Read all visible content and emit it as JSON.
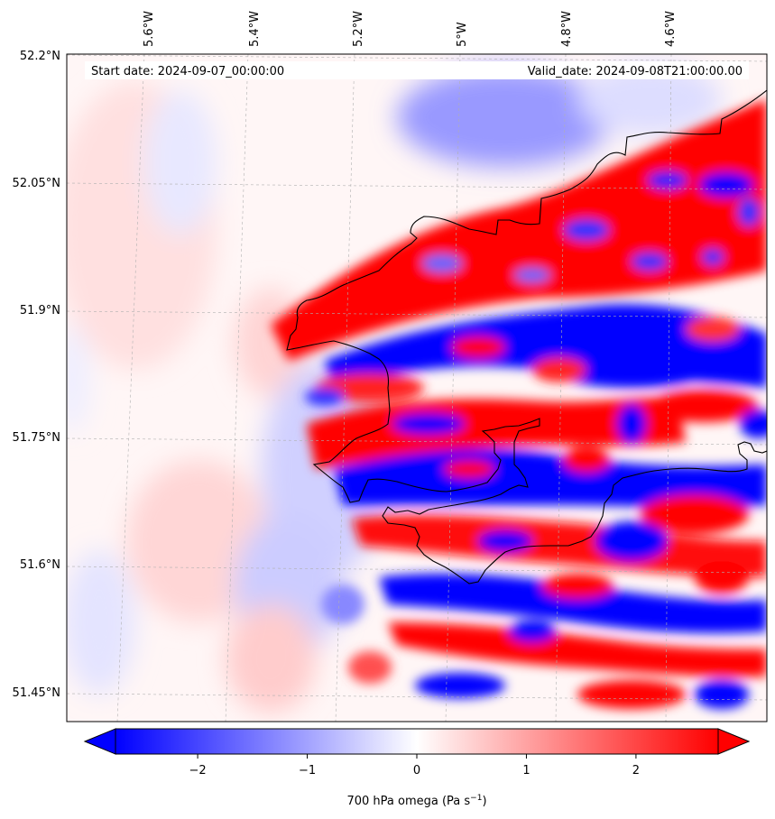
{
  "map": {
    "start_label": "Start date: 2024-09-07_00:00:00",
    "valid_label": "Valid_date: 2024-09-08T21:00:00.00",
    "lon_labels": [
      "5.6°W",
      "5.4°W",
      "5.2°W",
      "5°W",
      "4.8°W",
      "4.6°W"
    ],
    "lat_labels": [
      "52.2°N",
      "52.05°N",
      "51.9°N",
      "51.75°N",
      "51.6°N",
      "51.45°N"
    ]
  },
  "colorbar": {
    "ticks": [
      "−2",
      "−1",
      "0",
      "1",
      "2"
    ],
    "label_main": "700 hPa omega (Pa s",
    "label_sup": "−1",
    "label_end": ")",
    "range": [
      -2.75,
      2.75
    ],
    "extend": "both",
    "colormap": "bwr",
    "colors": {
      "low": "#0000ff",
      "mid": "#ffffff",
      "high": "#ff0000"
    }
  }
}
